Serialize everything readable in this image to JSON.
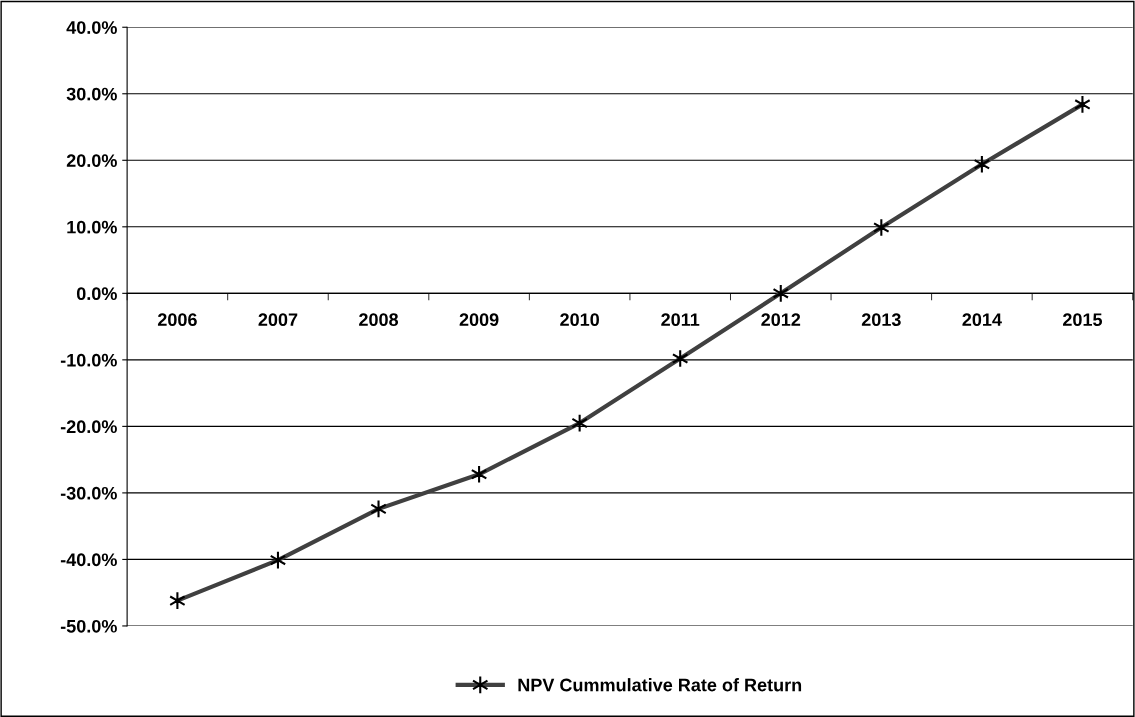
{
  "chart_data": {
    "type": "line",
    "categories": [
      "2006",
      "2007",
      "2008",
      "2009",
      "2010",
      "2011",
      "2012",
      "2013",
      "2014",
      "2015"
    ],
    "series": [
      {
        "name": "NPV Cummulative Rate of Return",
        "color": "#404040",
        "values": [
          -46.2,
          -40.1,
          -32.4,
          -27.2,
          -19.5,
          -9.8,
          0.0,
          9.9,
          19.4,
          28.4
        ]
      }
    ],
    "ylim": [
      -50,
      40
    ],
    "yticks": [
      {
        "value": -50,
        "label": "-50.0%"
      },
      {
        "value": -40,
        "label": "-40.0%"
      },
      {
        "value": -30,
        "label": "-30.0%"
      },
      {
        "value": -20,
        "label": "-20.0%"
      },
      {
        "value": -10,
        "label": "-10.0%"
      },
      {
        "value": 0,
        "label": "0.0%"
      },
      {
        "value": 10,
        "label": "10.0%"
      },
      {
        "value": 20,
        "label": "20.0%"
      },
      {
        "value": 30,
        "label": "30.0%"
      },
      {
        "value": 40,
        "label": "40.0%"
      }
    ],
    "grid": "y",
    "legend": "bottom",
    "marker": "cross",
    "line_style": "solid"
  }
}
